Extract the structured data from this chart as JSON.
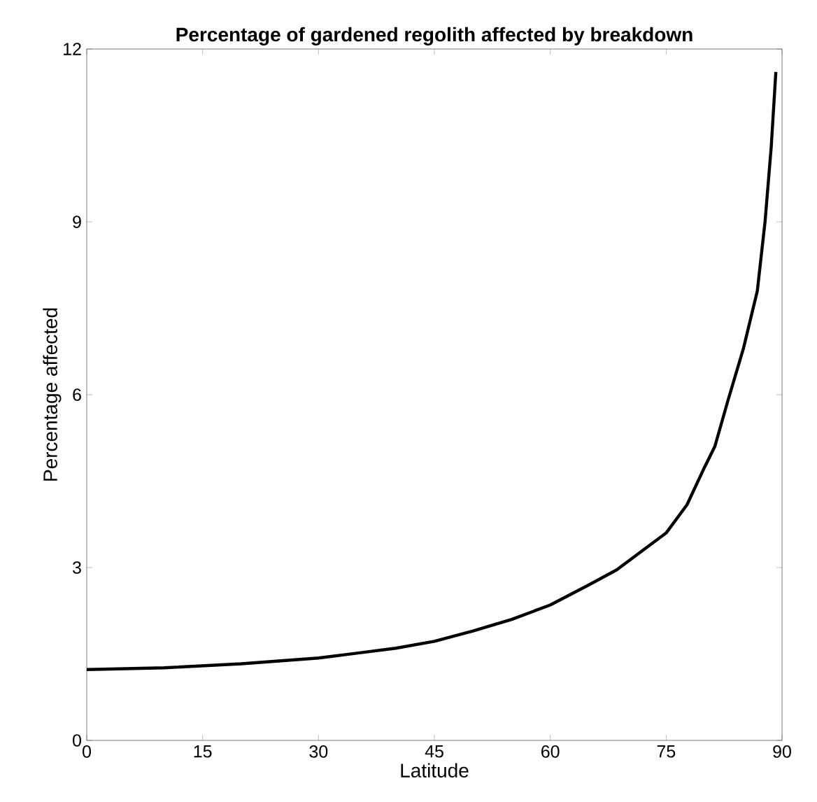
{
  "chart_data": {
    "type": "line",
    "title": "Percentage of gardened regolith affected by breakdown",
    "xlabel": "Latitude",
    "ylabel": "Percentage affected",
    "xlim": [
      0,
      90
    ],
    "ylim": [
      0,
      12
    ],
    "xticks": [
      0,
      15,
      30,
      45,
      60,
      75,
      90
    ],
    "yticks": [
      0,
      3,
      6,
      9,
      12
    ],
    "grid": false,
    "marker": "none",
    "line_style": "solid",
    "series": [
      {
        "color": "#000000",
        "x": [
          0,
          10,
          20,
          30,
          40,
          45,
          50,
          55,
          60,
          65,
          68.6,
          72,
          75,
          77.7,
          80,
          81.3,
          83,
          85,
          86.8,
          87.8,
          88.6,
          89.2
        ],
        "values": [
          1.23,
          1.26,
          1.33,
          1.43,
          1.6,
          1.72,
          1.9,
          2.1,
          2.35,
          2.7,
          2.96,
          3.3,
          3.6,
          4.09,
          4.75,
          5.1,
          5.9,
          6.8,
          7.8,
          9.0,
          10.3,
          11.6
        ]
      }
    ]
  }
}
